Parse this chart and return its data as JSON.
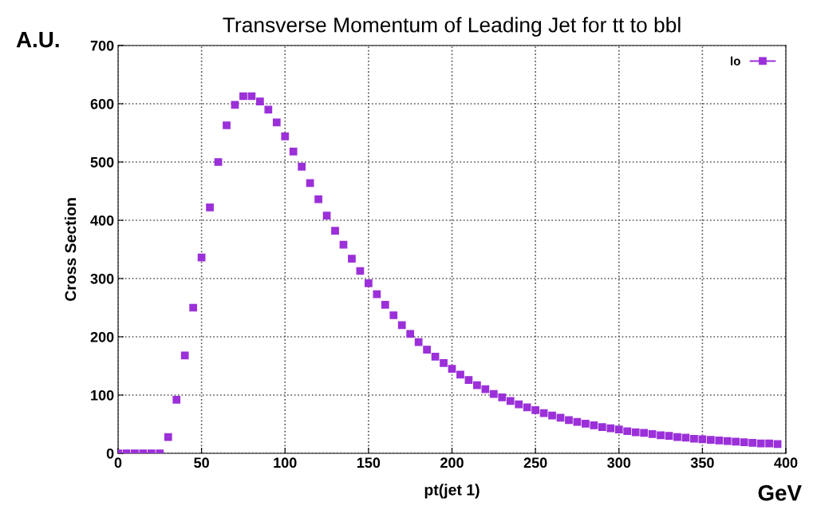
{
  "chart_data": {
    "type": "scatter",
    "title": "Transverse Momentum of Leading Jet for tt to bbl",
    "xlabel": "pt(jet 1)",
    "ylabel": "Cross Section",
    "annotations": [
      "A.U.",
      "GeV"
    ],
    "x": [
      0,
      5,
      10,
      15,
      20,
      25,
      30,
      35,
      40,
      45,
      50,
      55,
      60,
      65,
      70,
      75,
      80,
      85,
      90,
      95,
      100,
      105,
      110,
      115,
      120,
      125,
      130,
      135,
      140,
      145,
      150,
      155,
      160,
      165,
      170,
      175,
      180,
      185,
      190,
      195,
      200,
      205,
      210,
      215,
      220,
      225,
      230,
      235,
      240,
      245,
      250,
      255,
      260,
      265,
      270,
      275,
      280,
      285,
      290,
      295,
      300,
      305,
      310,
      315,
      320,
      325,
      330,
      335,
      340,
      345,
      350,
      355,
      360,
      365,
      370,
      375,
      380,
      385,
      390,
      395
    ],
    "series": [
      {
        "name": "lo",
        "color": "#9b30d9",
        "values": [
          0,
          0,
          0,
          0,
          0,
          0,
          28,
          92,
          168,
          250,
          336,
          422,
          500,
          563,
          598,
          613,
          613,
          604,
          590,
          568,
          544,
          518,
          492,
          464,
          436,
          408,
          382,
          358,
          334,
          313,
          292,
          273,
          255,
          237,
          220,
          205,
          191,
          178,
          166,
          155,
          145,
          135,
          126,
          117,
          110,
          102,
          96,
          90,
          84,
          79,
          74,
          69,
          65,
          61,
          57,
          54,
          51,
          48,
          45,
          43,
          41,
          38,
          36,
          35,
          33,
          31,
          30,
          28,
          27,
          25,
          24,
          23,
          22,
          21,
          20,
          19,
          18,
          17,
          17,
          16
        ]
      }
    ],
    "xlim": [
      0,
      400
    ],
    "xticks": [
      0,
      50,
      100,
      150,
      200,
      250,
      300,
      350,
      400
    ],
    "ylim": [
      0,
      700
    ],
    "yticks": [
      0,
      100,
      200,
      300,
      400,
      500,
      600,
      700
    ],
    "grid": true,
    "legend": "top right",
    "marker": "square"
  }
}
